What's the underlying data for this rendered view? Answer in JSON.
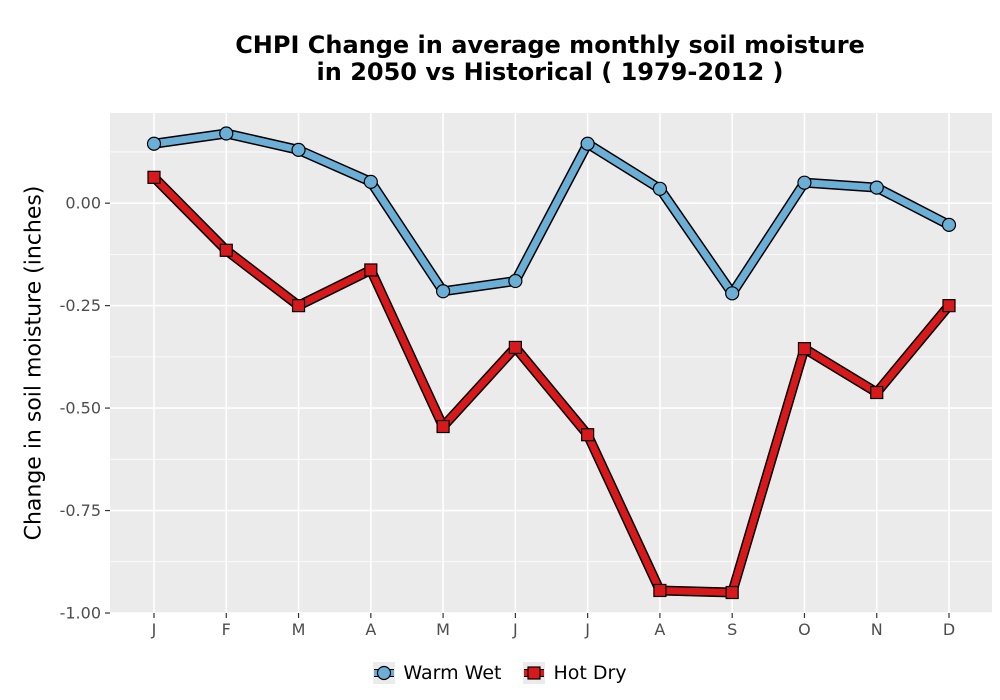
{
  "chart_data": {
    "type": "line",
    "title": "CHPI  Change in average monthly soil moisture\n in 2050 vs Historical ( 1979-2012 )",
    "xlabel": "",
    "ylabel": "Change in soil moisture (inches)",
    "categories": [
      "J",
      "F",
      "M",
      "A",
      "M",
      "J",
      "J",
      "A",
      "S",
      "O",
      "N",
      "D"
    ],
    "ylim": [
      -1.0,
      0.22
    ],
    "yticks": [
      0.0,
      -0.25,
      -0.5,
      -0.75,
      -1.0
    ],
    "ytick_labels": [
      "0.00",
      "-0.25",
      "-0.50",
      "-0.75",
      "-1.00"
    ],
    "grid": true,
    "legend_position": "bottom",
    "series": [
      {
        "name": "Warm Wet",
        "color": "#6baed6",
        "marker": "circle",
        "values": [
          0.145,
          0.17,
          0.13,
          0.052,
          -0.215,
          -0.19,
          0.145,
          0.035,
          -0.22,
          0.05,
          0.038,
          -0.053
        ]
      },
      {
        "name": "Hot Dry",
        "color": "#d7191c",
        "marker": "square",
        "values": [
          0.063,
          -0.115,
          -0.25,
          -0.163,
          -0.545,
          -0.352,
          -0.565,
          -0.945,
          -0.95,
          -0.355,
          -0.462,
          -0.25
        ]
      }
    ]
  }
}
